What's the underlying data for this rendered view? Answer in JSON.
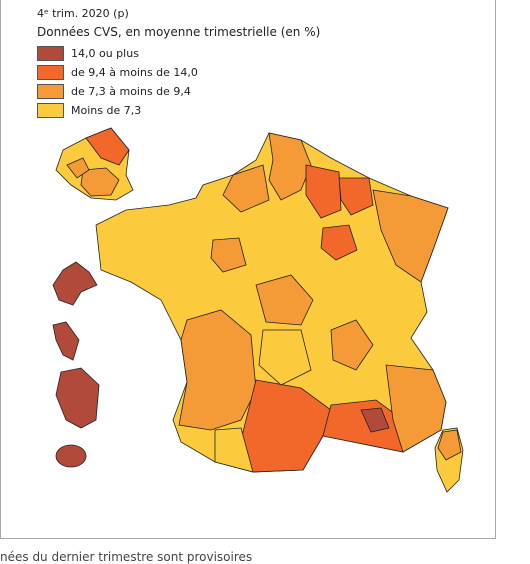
{
  "header": {
    "period": "4ᵉ trim. 2020 (p)",
    "subtitle": "Données CVS, en moyenne trimestrielle (en %)"
  },
  "legend": {
    "items": [
      {
        "label": "14,0 ou plus",
        "color": "#b24a3c"
      },
      {
        "label": "de 9,4 à moins de 14,0",
        "color": "#f2682b"
      },
      {
        "label": "de 7,3 à moins de 9,4",
        "color": "#f49a37"
      },
      {
        "label": "Moins de 7,3",
        "color": "#fccb3d"
      }
    ]
  },
  "footer": {
    "note": "nées du dernier trimestre sont provisoires"
  }
}
